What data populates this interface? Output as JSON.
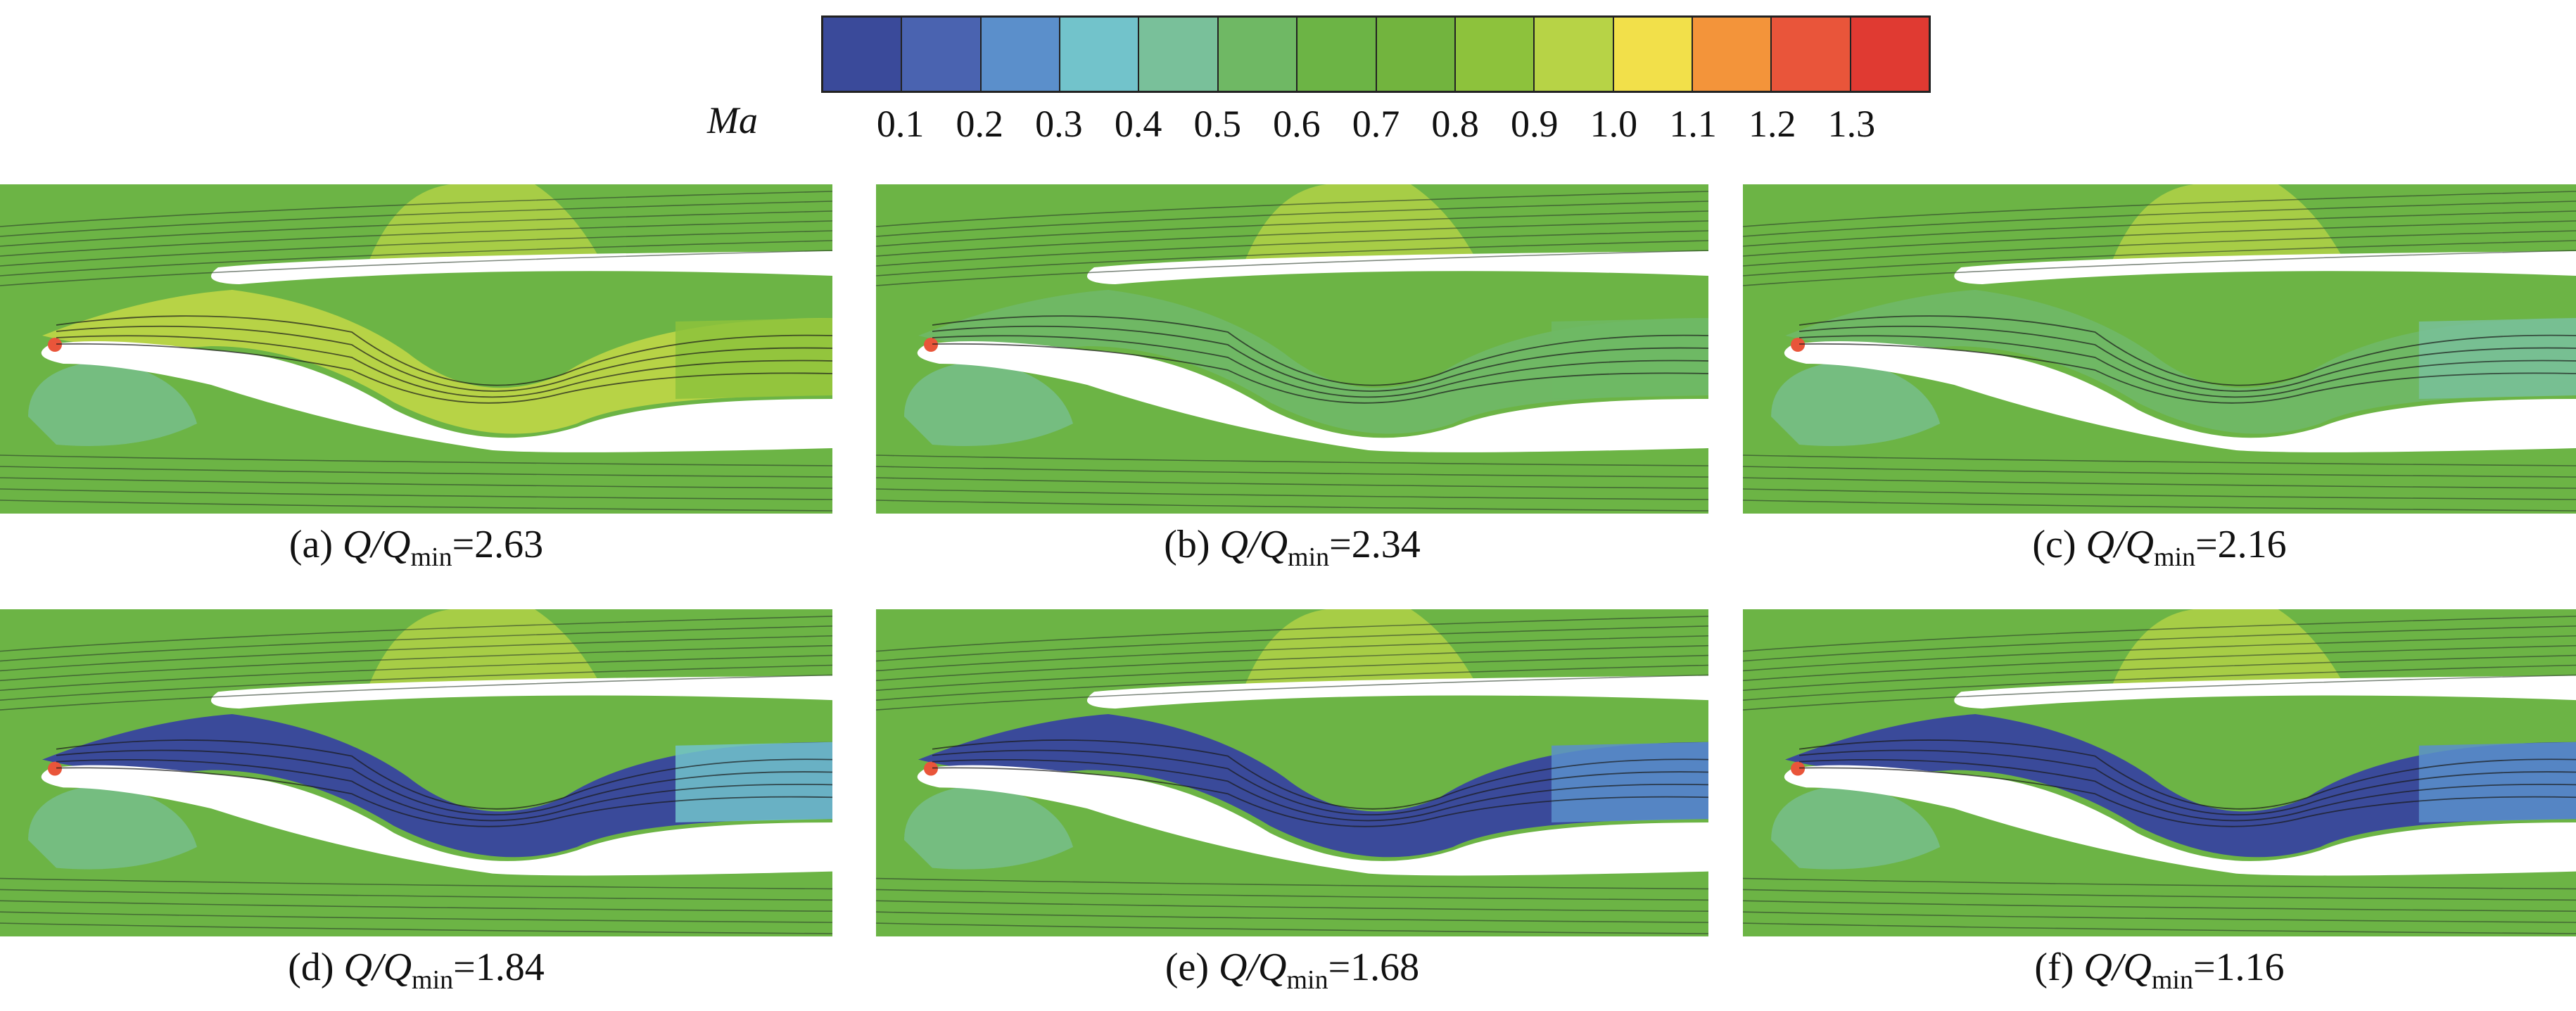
{
  "colorbar": {
    "title": "Ma",
    "ticks": [
      "0.1",
      "0.2",
      "0.3",
      "0.4",
      "0.5",
      "0.6",
      "0.7",
      "0.8",
      "0.9",
      "1.0",
      "1.1",
      "1.2",
      "1.3"
    ],
    "colors": [
      "#3a4a9a",
      "#4a63b0",
      "#5b8fcb",
      "#72c3cb",
      "#79c09a",
      "#6fb864",
      "#6cb445",
      "#72b43e",
      "#8dc23c",
      "#b7d346",
      "#f2e04a",
      "#f3943a",
      "#e9553a",
      "#e03a32"
    ]
  },
  "panels": [
    {
      "label": "(a)",
      "var_q": "Q",
      "var_qmin": "Q",
      "sub": "min",
      "value": "=2.63"
    },
    {
      "label": "(b)",
      "var_q": "Q",
      "var_qmin": "Q",
      "sub": "min",
      "value": "=2.34"
    },
    {
      "label": "(c)",
      "var_q": "Q",
      "var_qmin": "Q",
      "sub": "min",
      "value": "=2.16"
    },
    {
      "label": "(d)",
      "var_q": "Q",
      "var_qmin": "Q",
      "sub": "min",
      "value": "=1.84"
    },
    {
      "label": "(e)",
      "var_q": "Q",
      "var_qmin": "Q",
      "sub": "min",
      "value": "=1.68"
    },
    {
      "label": "(f)",
      "var_q": "Q",
      "var_qmin": "Q",
      "sub": "min",
      "value": "=1.16"
    }
  ]
}
